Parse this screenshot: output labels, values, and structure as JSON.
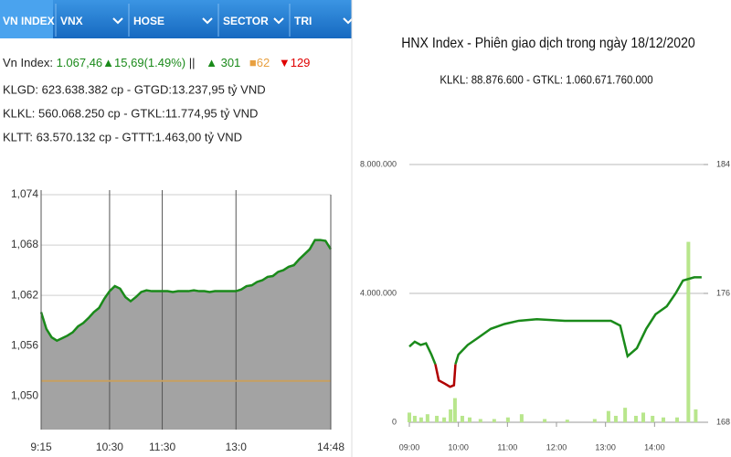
{
  "tabs": [
    "VN INDEX",
    "VNX",
    "HOSE",
    "SECTOR",
    "TRI"
  ],
  "info": {
    "label": "Vn Index:",
    "index": "1.067,46▲15,69(1.49%)",
    "sep": "||",
    "up": "▲ 301",
    "flat": "■62",
    "down": "▼129",
    "lines": [
      "KLGD: 623.638.382 cp - GTGD:13.237,95 tỷ VND",
      "KLKL: 560.068.250 cp - GTKL:11.774,95 tỷ VND",
      "KLTT: 63.570.132 cp - GTTT:1.463,00 tỷ VND"
    ]
  },
  "chart_data": [
    {
      "type": "area",
      "categories": [
        "9:15",
        null,
        null,
        null,
        null,
        null,
        null,
        null,
        null,
        null,
        null,
        null,
        null,
        "10:30",
        null,
        null,
        null,
        null,
        null,
        null,
        null,
        null,
        null,
        "11:30",
        null,
        null,
        null,
        null,
        null,
        null,
        null,
        null,
        null,
        null,
        null,
        null,
        null,
        "13:0",
        null,
        null,
        null,
        null,
        null,
        null,
        null,
        null,
        null,
        null,
        null,
        null,
        null,
        null,
        null,
        null,
        null,
        "14:48"
      ],
      "values": [
        1060.0,
        1058.0,
        1057.0,
        1056.6,
        1056.9,
        1057.2,
        1057.6,
        1058.3,
        1058.7,
        1059.3,
        1060.0,
        1060.5,
        1061.6,
        1062.5,
        1063.1,
        1062.8,
        1061.8,
        1061.3,
        1061.8,
        1062.4,
        1062.6,
        1062.5,
        1062.5,
        1062.5,
        1062.5,
        1062.4,
        1062.5,
        1062.5,
        1062.5,
        1062.6,
        1062.5,
        1062.5,
        1062.4,
        1062.5,
        1062.5,
        1062.5,
        1062.5,
        1062.5,
        1062.7,
        1063.1,
        1063.2,
        1063.6,
        1063.8,
        1064.2,
        1064.3,
        1064.8,
        1065.0,
        1065.4,
        1065.6,
        1066.3,
        1066.9,
        1067.5,
        1068.6,
        1068.6,
        1068.5,
        1067.5
      ],
      "color": "#1a8a1a",
      "fill": "#a3a3a3",
      "ylim": [
        1046,
        1074
      ],
      "yticks": [
        {
          "value": 1050,
          "label": "1,050"
        },
        {
          "value": 1056,
          "label": "1,056"
        },
        {
          "value": 1062,
          "label": "1,062"
        },
        {
          "value": 1068,
          "label": "1,068"
        },
        {
          "value": 1074,
          "label": "1,074"
        }
      ],
      "reference_line": 1051.8,
      "reference_color": "#c8a060",
      "grid": true
    },
    {
      "type": "combo",
      "title": "HNX Index - Phiên giao dịch trong ngày 18/12/2020",
      "subtitle": "KLKL: 88.876.600 - GTKL: 1.060.671.760.000",
      "xlim": [
        9,
        15
      ],
      "xticks": [
        {
          "value": 9,
          "label": "09:00"
        },
        {
          "value": 10,
          "label": "10:00"
        },
        {
          "value": 11,
          "label": "11:00"
        },
        {
          "value": 12,
          "label": "12:00"
        },
        {
          "value": 13,
          "label": "13:00"
        },
        {
          "value": 14,
          "label": "14:00"
        }
      ],
      "ylim": [
        0,
        8000000
      ],
      "yticks": [
        0,
        {
          "value": 4000000,
          "label": "4.000.000"
        },
        {
          "value": 8000000,
          "label": "8.000.000"
        }
      ],
      "y2lim": [
        168,
        184
      ],
      "y2ticks": [
        168,
        176,
        184
      ],
      "grid": true,
      "series": [
        {
          "type": "bar",
          "color": "#b8e68c",
          "x": [
            9.0,
            9.11,
            9.24,
            9.37,
            9.56,
            9.71,
            9.84,
            9.93,
            10.08,
            10.23,
            10.45,
            10.73,
            11.01,
            11.29,
            11.76,
            12.22,
            12.78,
            13.06,
            13.21,
            13.4,
            13.62,
            13.77,
            13.96,
            14.18,
            14.46,
            14.69,
            14.84
          ],
          "values": [
            300000,
            200000,
            150000,
            250000,
            200000,
            150000,
            400000,
            750000,
            200000,
            150000,
            100000,
            100000,
            150000,
            250000,
            100000,
            80000,
            100000,
            350000,
            200000,
            450000,
            200000,
            300000,
            200000,
            150000,
            150000,
            5600000,
            400000
          ]
        },
        {
          "type": "line",
          "axis": "y2",
          "color": "#1a8a1a",
          "x": [
            9.0,
            9.11,
            9.23,
            9.34,
            9.45,
            9.53,
            9.6,
            9.72,
            9.83,
            9.91,
            9.94,
            10.0,
            10.19,
            10.38,
            10.66,
            10.94,
            11.23,
            11.6,
            12.17,
            12.74,
            13.11,
            13.3,
            13.45,
            13.64,
            13.83,
            14.02,
            14.25,
            14.43,
            14.58,
            14.81,
            14.96
          ],
          "values": [
            172.7,
            173.0,
            172.8,
            172.9,
            172.2,
            171.6,
            null,
            null,
            null,
            null,
            171.6,
            172.2,
            172.8,
            173.2,
            173.8,
            174.1,
            174.3,
            174.4,
            174.3,
            174.3,
            174.3,
            174.0,
            172.1,
            172.6,
            173.8,
            174.7,
            175.2,
            176.0,
            176.8,
            177.0,
            177.0
          ]
        },
        {
          "type": "line",
          "axis": "y2",
          "color": "#b00000",
          "x": [
            9.0,
            9.11,
            9.23,
            9.34,
            9.45,
            9.53,
            9.6,
            9.72,
            9.83,
            9.91,
            9.94,
            10.0,
            10.19,
            10.38,
            10.66,
            10.94,
            11.23,
            11.6,
            12.17,
            12.74,
            13.11,
            13.3,
            13.45,
            13.64,
            13.83,
            14.02,
            14.25,
            14.43,
            14.58,
            14.81,
            14.96
          ],
          "values": [
            null,
            null,
            null,
            null,
            null,
            171.6,
            170.6,
            170.4,
            170.2,
            170.3,
            171.6,
            null,
            null,
            null,
            null,
            null,
            null,
            null,
            null,
            null,
            null,
            null,
            null,
            null,
            null,
            null,
            null,
            null,
            null,
            null,
            null
          ]
        }
      ]
    }
  ]
}
